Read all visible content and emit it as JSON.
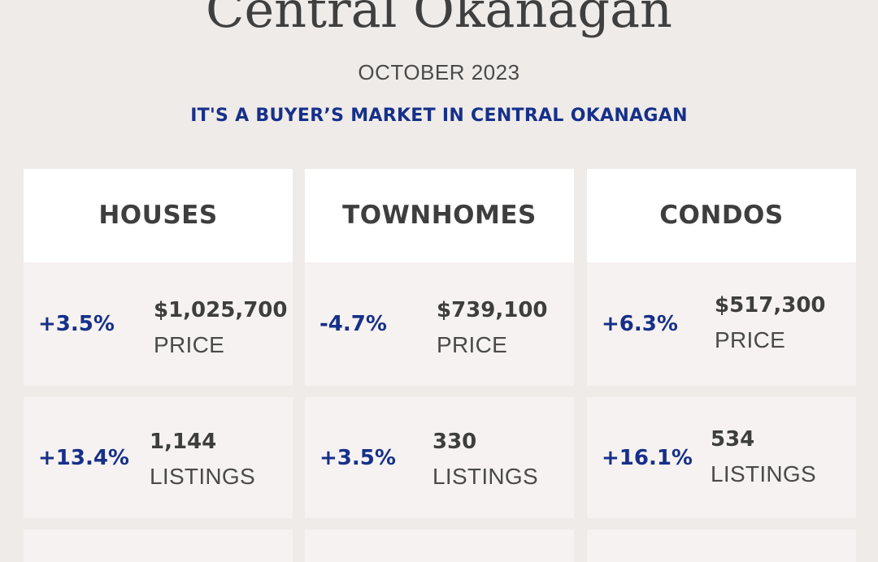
{
  "title": "Central Okanagan",
  "month": "OCTOBER 2023",
  "tagline": "IT'S A BUYER’S MARKET IN CENTRAL OKANAGAN",
  "columns": [
    {
      "header": "HOUSES",
      "price": {
        "change": "+3.5%",
        "value": "$1,025,700",
        "label": "PRICE"
      },
      "listings": {
        "change": "+13.4%",
        "value": "1,144",
        "label": "LISTINGS"
      }
    },
    {
      "header": "TOWNHOMES",
      "price": {
        "change": "-4.7%",
        "value": "$739,100",
        "label": "PRICE"
      },
      "listings": {
        "change": "+3.5%",
        "value": "330",
        "label": "LISTINGS"
      }
    },
    {
      "header": "CONDOS",
      "price": {
        "change": "+6.3%",
        "value": "$517,300",
        "label": "PRICE"
      },
      "listings": {
        "change": "+16.1%",
        "value": "534",
        "label": "LISTINGS"
      }
    }
  ],
  "colors": {
    "background": "#efebe9",
    "accent": "#16308a",
    "card_header": "#ffffff",
    "card_body": "#f6f2f1",
    "text": "#3e3e3e"
  }
}
